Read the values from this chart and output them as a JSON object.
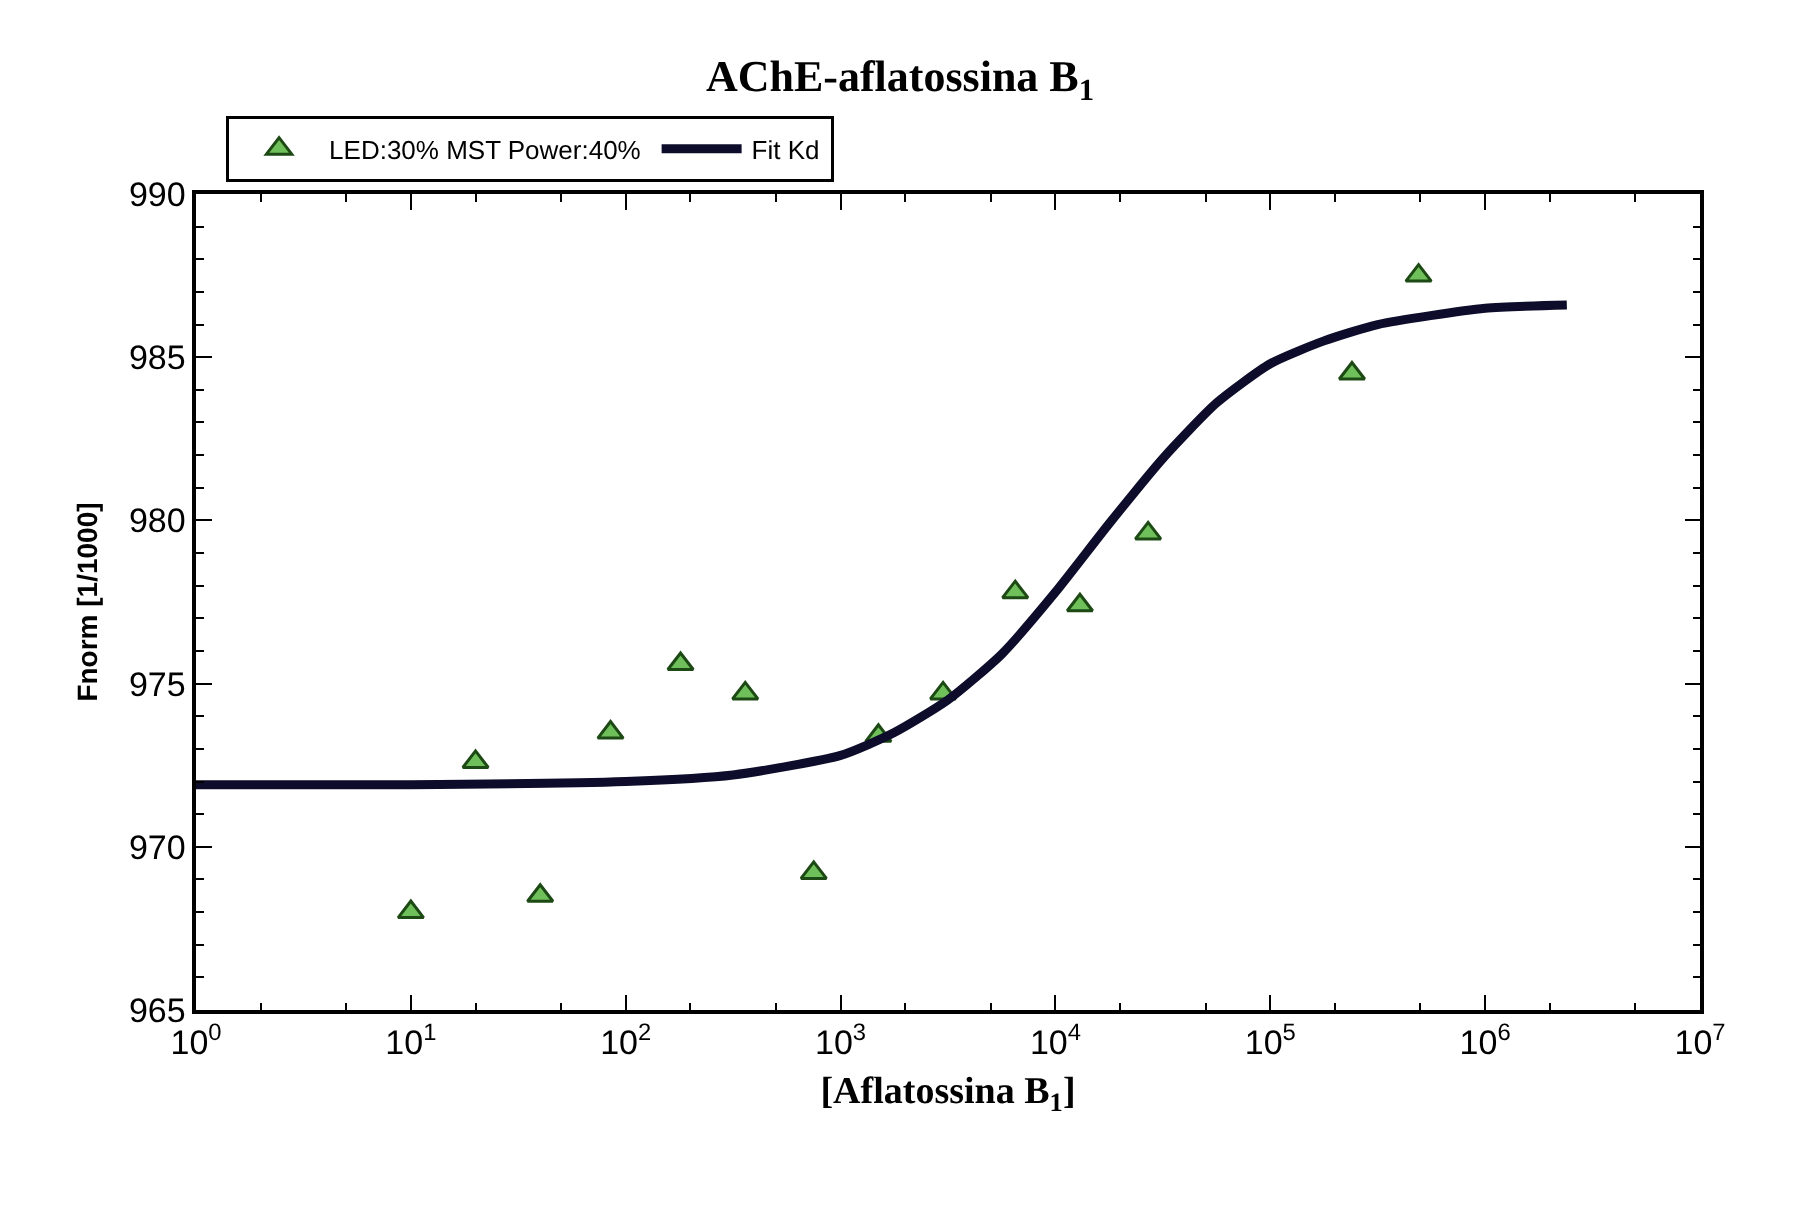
{
  "chart_data": {
    "type": "scatter",
    "title": "AChE-aflatossina B$_{1}$",
    "xlabel": "[Aflatossina B$_{1}$]",
    "ylabel": "Fnorm [1/1000]",
    "log": "x",
    "xlim": [
      1,
      10000000
    ],
    "ylim": [
      965,
      990
    ],
    "xticks": [
      {
        "value": 1,
        "label": "10$^{0}$"
      },
      {
        "value": 10,
        "label": "10$^{1}$"
      },
      {
        "value": 100,
        "label": "10$^{2}$"
      },
      {
        "value": 1000,
        "label": "10$^{3}$"
      },
      {
        "value": 10000,
        "label": "10$^{4}$"
      },
      {
        "value": 100000,
        "label": "10$^{5}$"
      },
      {
        "value": 1000000,
        "label": "10$^{6}$"
      },
      {
        "value": 10000000,
        "label": "10$^{7}$"
      }
    ],
    "yticks": [
      965,
      970,
      975,
      980,
      985,
      990
    ],
    "grid": false,
    "legend": "top left",
    "series": [
      {
        "name": "LED:30% MST Power:40%",
        "marker": "triangle",
        "color": "#6fbf5a",
        "x": [
          10,
          20,
          40,
          85,
          180,
          360,
          750,
          1500,
          3000,
          6500,
          13000,
          27000,
          240000,
          490000
        ],
        "values": [
          968.0,
          972.6,
          968.5,
          973.5,
          975.6,
          974.7,
          969.2,
          973.4,
          974.7,
          977.8,
          977.4,
          979.6,
          984.5,
          987.5
        ]
      },
      {
        "name": "Fit Kd",
        "type": "line",
        "line_style": "solid",
        "color": "#0d0d2b",
        "x": [
          1,
          10,
          100,
          316,
          1000,
          1778,
          3162,
          5623,
          10000,
          17783,
          31623,
          56234,
          100000,
          177828,
          316228,
          1000000,
          2400000
        ],
        "values": [
          971.9,
          971.9,
          972.0,
          972.2,
          972.8,
          973.5,
          974.5,
          975.9,
          977.8,
          979.9,
          981.9,
          983.6,
          984.8,
          985.5,
          986.0,
          986.5,
          986.6
        ]
      }
    ]
  }
}
